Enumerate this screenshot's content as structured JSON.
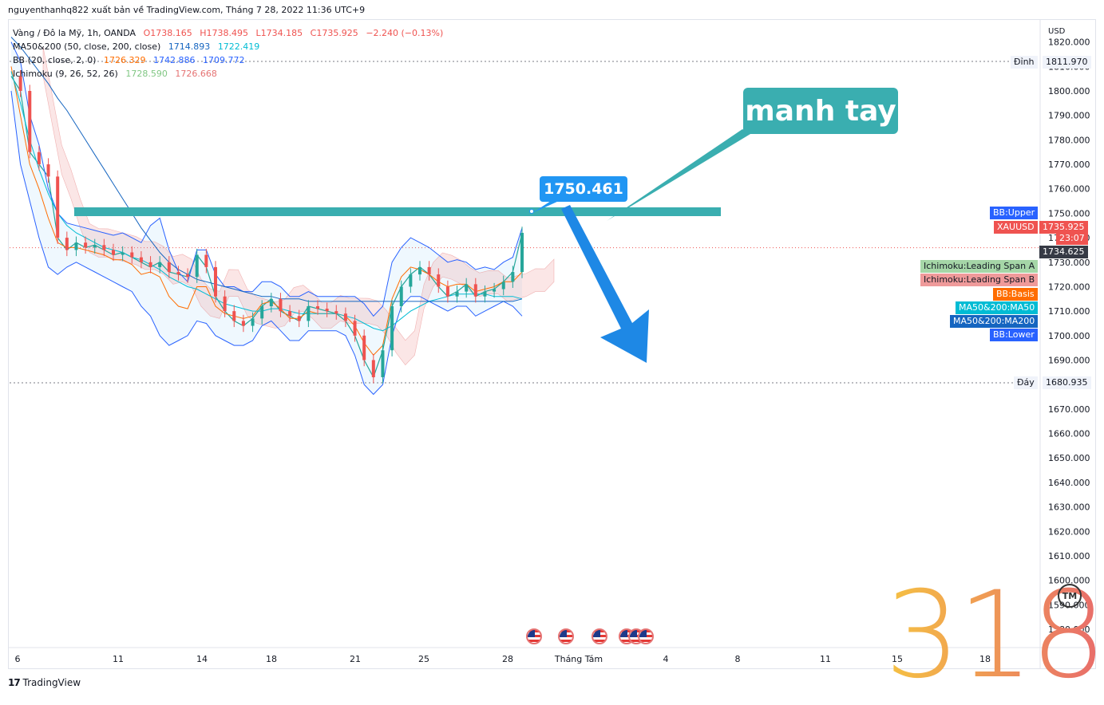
{
  "header": {
    "publisher_line": "nguyenthanhq822 xuất bản về TradingView.com, Tháng 7 28, 2022 11:36 UTC+9"
  },
  "legend": {
    "symbol": {
      "name": "Vàng / Đô la Mỹ, 1h, OANDA",
      "open": "O1738.165",
      "high": "H1738.495",
      "low": "L1734.185",
      "close": "C1735.925",
      "change": "−2.240 (−0.13%)"
    },
    "ma": {
      "name": "MA50&200 (50, close, 200, close)",
      "v1": "1714.893",
      "v2": "1722.419"
    },
    "bb": {
      "name": "BB (20, close, 2, 0)",
      "v1": "1726.329",
      "v2": "1742.886",
      "v3": "1709.772"
    },
    "ichimoku": {
      "name": "Ichimoku (9, 26, 52, 26)",
      "v1": "1728.590",
      "v2": "1726.668"
    }
  },
  "annotations": {
    "callout_text": "manh tay",
    "price_callout": "1750.461",
    "watermark": "318",
    "tm": "TM"
  },
  "right_scale": {
    "currency": "USD",
    "high_label": "Đỉnh",
    "high_value": "1811.970",
    "low_label": "Đáy",
    "low_value": "1680.935",
    "tags": [
      {
        "text": "BB:Upper",
        "color": "#2962ff"
      },
      {
        "text": "XAUUSD",
        "color": "#ef5350"
      },
      {
        "text": "1735.925",
        "color": "#ef5350"
      },
      {
        "text": "23:07",
        "color": "#ef5350"
      },
      {
        "text": "1734.625",
        "color": "#363a45"
      },
      {
        "text": "Ichimoku:Leading Span A",
        "color": "#a5d6a7"
      },
      {
        "text": "Ichimoku:Leading Span B",
        "color": "#ef9a9a"
      },
      {
        "text": "BB:Basis",
        "color": "#ff6d00"
      },
      {
        "text": "MA50&200:MA50",
        "color": "#00bcd4"
      },
      {
        "text": "MA50&200:MA200",
        "color": "#1565c0"
      },
      {
        "text": "BB:Lower",
        "color": "#2962ff"
      }
    ]
  },
  "footer": {
    "brand": "TradingView"
  },
  "chart_data": {
    "type": "line",
    "title": "Vàng / Đô la Mỹ, 1h, OANDA",
    "ylim": [
      1575,
      1825
    ],
    "y_ticks": [
      1580,
      1590,
      1600,
      1610,
      1620,
      1630,
      1640,
      1650,
      1660,
      1670,
      1680,
      1690,
      1700,
      1710,
      1720,
      1730,
      1740,
      1750,
      1760,
      1770,
      1780,
      1790,
      1800,
      1810,
      1820
    ],
    "x_ticks": [
      "6",
      "11",
      "14",
      "18",
      "21",
      "25",
      "28",
      "Tháng Tám",
      "4",
      "8",
      "11",
      "15",
      "18"
    ],
    "resistance_level": 1750.461,
    "last_price": 1735.925,
    "series": [
      {
        "name": "XAUUSD",
        "color": "#26a69a",
        "values": [
          1806,
          1800,
          1775,
          1770,
          1765,
          1740,
          1735,
          1738,
          1736,
          1737,
          1735,
          1733,
          1734,
          1732,
          1730,
          1728,
          1730,
          1726,
          1725,
          1724,
          1733,
          1728,
          1716,
          1710,
          1706,
          1704,
          1707,
          1712,
          1715,
          1710,
          1708,
          1706,
          1712,
          1711,
          1710,
          1709,
          1706,
          1700,
          1690,
          1683,
          1694,
          1712,
          1720,
          1725,
          1728,
          1725,
          1720,
          1716,
          1718,
          1721,
          1716,
          1718,
          1719,
          1722,
          1726,
          1742
        ]
      },
      {
        "name": "BB:Upper",
        "color": "#2962ff",
        "values": [
          1820,
          1812,
          1790,
          1778,
          1760,
          1750,
          1746,
          1745,
          1744,
          1743,
          1742,
          1741,
          1742,
          1740,
          1738,
          1745,
          1748,
          1735,
          1726,
          1722,
          1735,
          1735,
          1725,
          1720,
          1720,
          1718,
          1718,
          1722,
          1722,
          1720,
          1716,
          1716,
          1718,
          1716,
          1716,
          1716,
          1716,
          1716,
          1713,
          1708,
          1712,
          1730,
          1736,
          1740,
          1738,
          1736,
          1733,
          1730,
          1731,
          1730,
          1727,
          1728,
          1727,
          1730,
          1732,
          1744
        ]
      },
      {
        "name": "BB:Lower",
        "color": "#2962ff",
        "values": [
          1800,
          1770,
          1755,
          1740,
          1728,
          1725,
          1728,
          1730,
          1728,
          1726,
          1724,
          1722,
          1720,
          1718,
          1712,
          1708,
          1700,
          1696,
          1698,
          1700,
          1706,
          1705,
          1700,
          1698,
          1696,
          1696,
          1698,
          1704,
          1706,
          1702,
          1698,
          1698,
          1702,
          1702,
          1702,
          1702,
          1700,
          1692,
          1680,
          1676,
          1680,
          1700,
          1712,
          1716,
          1716,
          1714,
          1712,
          1710,
          1712,
          1712,
          1708,
          1710,
          1712,
          1714,
          1712,
          1708
        ]
      },
      {
        "name": "BB:Basis",
        "color": "#ff6d00",
        "values": [
          1810,
          1790,
          1770,
          1760,
          1748,
          1738,
          1736,
          1736,
          1735,
          1734,
          1733,
          1731,
          1731,
          1729,
          1725,
          1726,
          1724,
          1716,
          1712,
          1711,
          1720,
          1720,
          1712,
          1709,
          1708,
          1707,
          1708,
          1713,
          1714,
          1711,
          1707,
          1707,
          1710,
          1709,
          1709,
          1709,
          1708,
          1704,
          1697,
          1692,
          1696,
          1715,
          1724,
          1728,
          1727,
          1725,
          1722,
          1720,
          1721,
          1721,
          1718,
          1719,
          1720,
          1722,
          1722,
          1726
        ]
      },
      {
        "name": "MA50&200:MA50",
        "color": "#00bcd4",
        "values": [
          1808,
          1795,
          1780,
          1768,
          1758,
          1750,
          1745,
          1742,
          1740,
          1738,
          1736,
          1735,
          1734,
          1732,
          1731,
          1729,
          1727,
          1724,
          1722,
          1720,
          1719,
          1717,
          1715,
          1713,
          1712,
          1711,
          1710,
          1710,
          1711,
          1711,
          1710,
          1709,
          1709,
          1709,
          1709,
          1709,
          1708,
          1707,
          1705,
          1703,
          1702,
          1704,
          1707,
          1710,
          1712,
          1714,
          1715,
          1716,
          1717,
          1717,
          1717,
          1717,
          1716,
          1716,
          1716,
          1715
        ]
      },
      {
        "name": "MA50&200:MA200",
        "color": "#1565c0",
        "values": [
          1822,
          1818,
          1813,
          1808,
          1803,
          1797,
          1792,
          1786,
          1780,
          1774,
          1768,
          1762,
          1756,
          1750,
          1744,
          1739,
          1734,
          1730,
          1727,
          1725,
          1723,
          1722,
          1721,
          1720,
          1719,
          1718,
          1717,
          1716,
          1716,
          1715,
          1715,
          1715,
          1714,
          1714,
          1714,
          1714,
          1714,
          1714,
          1714,
          1714,
          1714,
          1714,
          1714,
          1714,
          1714,
          1714,
          1714,
          1714,
          1714,
          1714,
          1714,
          1714,
          1714,
          1714,
          1714,
          1715
        ]
      }
    ]
  }
}
